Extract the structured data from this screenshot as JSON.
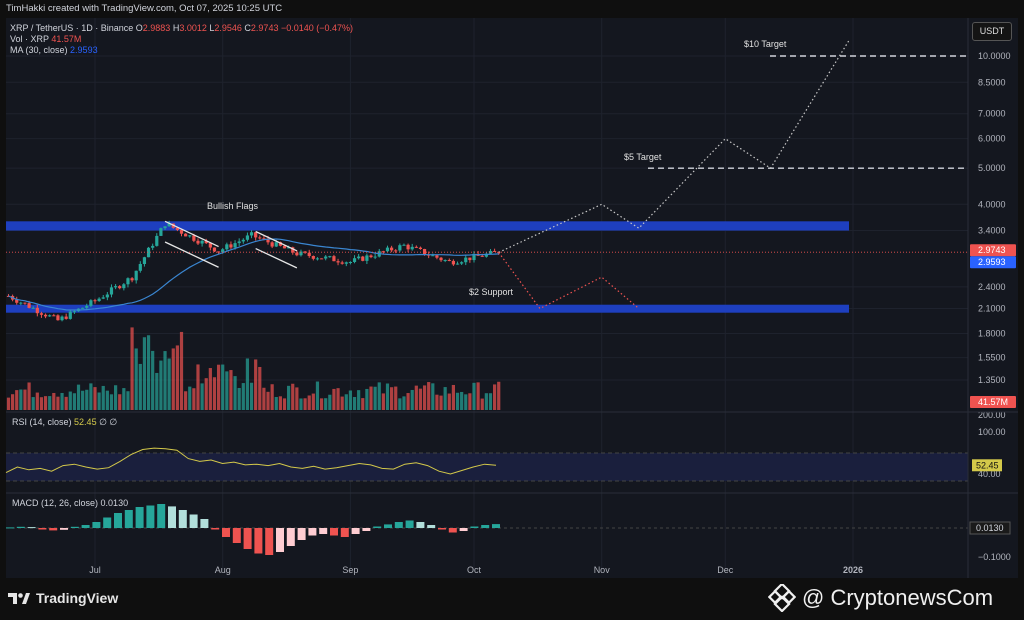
{
  "header": {
    "credit": "TimHakki created with TradingView.com, Oct 07, 2025 10:25 UTC"
  },
  "currency_button": "USDT",
  "legend": {
    "symbol": "XRP / TetherUS · 1D · Binance",
    "o_label": "O",
    "o": "2.9883",
    "h_label": "H",
    "h": "3.0012",
    "l_label": "L",
    "l": "2.9546",
    "c_label": "C",
    "c": "2.9743",
    "change": "−0.0140 (−0.47%)",
    "vol_label": "Vol · XRP",
    "vol": "41.57M",
    "ma_label": "MA (30, close)",
    "ma": "2.9593"
  },
  "rsi_legend": {
    "label": "RSI (14, close)",
    "value": "52.45",
    "extra": "∅  ∅"
  },
  "macd_legend": {
    "label": "MACD (12, 26, close)",
    "value": "0.0130"
  },
  "colors": {
    "up": "#26a69a",
    "down": "#ef5350",
    "ma": "#2962ff",
    "zone": "#1e3fbf",
    "rsi": "#d4c94a",
    "bg": "#14171f"
  },
  "annotations": {
    "flags": "Bullish Flags",
    "support": "$2 Support",
    "target5": "$5 Target",
    "target10": "$10 Target"
  },
  "footer": {
    "tradingview": "TradingView",
    "cryptonews": "@ CryptonewsCom"
  },
  "chart_data": [
    {
      "type": "candlestick",
      "title": "XRP / TetherUS · 1D · Binance",
      "y_scale": "log",
      "y_ticks": [
        "10.0000",
        "8.5000",
        "7.0000",
        "6.0000",
        "5.0000",
        "4.0000",
        "3.4000",
        "2.4000",
        "2.1000",
        "1.8000",
        "1.5500",
        "1.3500"
      ],
      "x_ticks": [
        "Jul",
        "Aug",
        "Sep",
        "Oct",
        "Nov",
        "Dec",
        "2026"
      ],
      "last_price": "2.9743",
      "ma_last": "2.9593",
      "volume_last": "41.57M",
      "zones": [
        {
          "name": "resistance",
          "low": 3.4,
          "high": 3.6
        },
        {
          "name": "$2 Support",
          "low": 2.05,
          "high": 2.15
        }
      ],
      "targets": [
        {
          "label": "$5 Target",
          "value": 5.0
        },
        {
          "label": "$10 Target",
          "value": 10.0
        }
      ],
      "series_keypoints": [
        {
          "date": "Jun 10",
          "close": 2.27
        },
        {
          "date": "Jun 22",
          "close": 1.95
        },
        {
          "date": "Jul 1",
          "close": 2.2
        },
        {
          "date": "Jul 10",
          "close": 2.55
        },
        {
          "date": "Jul 18",
          "close": 3.55
        },
        {
          "date": "Jul 31",
          "close": 3.0
        },
        {
          "date": "Aug 8",
          "close": 3.3
        },
        {
          "date": "Aug 19",
          "close": 2.95
        },
        {
          "date": "Sep 1",
          "close": 2.8
        },
        {
          "date": "Sep 14",
          "close": 3.1
        },
        {
          "date": "Sep 25",
          "close": 2.8
        },
        {
          "date": "Oct 7",
          "close": 2.9743
        }
      ],
      "projections": [
        {
          "name": "bullish",
          "points": [
            {
              "date": "Oct 7",
              "value": 2.97
            },
            {
              "date": "Nov 1",
              "value": 4.0
            },
            {
              "date": "Nov 10",
              "value": 3.45
            },
            {
              "date": "Dec 1",
              "value": 6.0
            },
            {
              "date": "Dec 12",
              "value": 5.0
            },
            {
              "date": "Dec 31",
              "value": 11.0
            }
          ]
        },
        {
          "name": "bearish",
          "points": [
            {
              "date": "Oct 7",
              "value": 2.97
            },
            {
              "date": "Oct 17",
              "value": 2.1
            },
            {
              "date": "Nov 1",
              "value": 2.55
            },
            {
              "date": "Nov 10",
              "value": 2.1
            }
          ]
        }
      ]
    },
    {
      "type": "line",
      "title": "RSI (14, close)",
      "y_ticks": [
        "100.00",
        "40.00"
      ],
      "last": "52.45",
      "bands": [
        30,
        70
      ],
      "values": [
        42,
        50,
        46,
        48,
        44,
        52,
        54,
        50,
        47,
        49,
        58,
        68,
        75,
        77,
        76,
        74,
        62,
        58,
        60,
        55,
        57,
        53,
        54,
        52,
        55,
        50,
        48,
        51,
        47,
        49,
        52,
        55,
        53,
        48,
        47,
        54,
        56,
        52,
        44,
        40,
        45,
        50,
        54,
        52.45
      ]
    },
    {
      "type": "bar",
      "title": "MACD (12, 26, close)",
      "y_ticks": [
        "0.0130",
        "−0.1000"
      ],
      "last": "0.0130",
      "values": [
        0.002,
        0.004,
        0.003,
        -0.005,
        -0.008,
        -0.006,
        0.004,
        0.01,
        0.02,
        0.035,
        0.05,
        0.06,
        0.07,
        0.075,
        0.08,
        0.072,
        0.06,
        0.045,
        0.03,
        -0.005,
        -0.03,
        -0.05,
        -0.07,
        -0.085,
        -0.09,
        -0.08,
        -0.06,
        -0.04,
        -0.025,
        -0.02,
        -0.025,
        -0.03,
        -0.02,
        -0.01,
        0.005,
        0.012,
        0.02,
        0.025,
        0.02,
        0.01,
        -0.005,
        -0.015,
        -0.01,
        0.005,
        0.01,
        0.013
      ]
    }
  ]
}
